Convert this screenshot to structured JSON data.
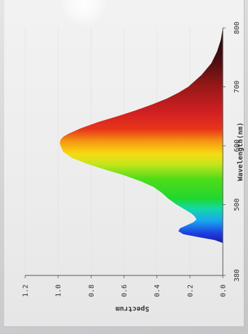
{
  "chart_data": {
    "type": "area",
    "xlabel": "Wavelength(nm)",
    "ylabel": "Spectrum",
    "xlim": [
      380,
      800
    ],
    "ylim": [
      0,
      1.2
    ],
    "x_ticks": [
      "380",
      "500",
      "600",
      "700",
      "800"
    ],
    "y_ticks": [
      "0.0",
      "0.2",
      "0.4",
      "0.6",
      "0.8",
      "1.0",
      "1.2"
    ],
    "fill": "visible-spectrum-gradient",
    "series": [
      {
        "x": [
          435,
          440,
          445,
          450,
          455,
          460,
          465,
          470,
          475,
          480,
          485,
          490,
          495,
          500,
          510,
          520,
          530,
          540,
          550,
          560,
          570,
          580,
          590,
          600,
          605,
          610,
          615,
          620,
          630,
          640,
          650,
          660,
          670,
          680,
          690,
          700,
          720,
          740,
          760,
          780,
          800
        ],
        "y": [
          0.0,
          0.05,
          0.15,
          0.24,
          0.27,
          0.26,
          0.22,
          0.18,
          0.16,
          0.17,
          0.19,
          0.22,
          0.25,
          0.28,
          0.33,
          0.37,
          0.42,
          0.5,
          0.6,
          0.72,
          0.83,
          0.92,
          0.97,
          0.985,
          0.99,
          0.985,
          0.97,
          0.94,
          0.86,
          0.76,
          0.64,
          0.53,
          0.43,
          0.34,
          0.27,
          0.21,
          0.13,
          0.07,
          0.035,
          0.012,
          0.0
        ]
      }
    ]
  },
  "colors": {
    "paper": "#efefef",
    "axis": "#555555",
    "text": "#333333"
  }
}
